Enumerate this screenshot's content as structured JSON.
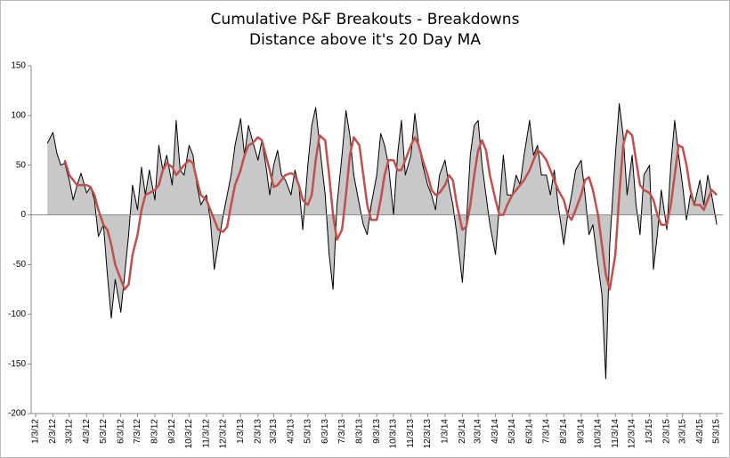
{
  "chart_data": {
    "type": "line",
    "title": "Cumulative P&F Breakouts - Breakdowns",
    "subtitle": "Distance above it's 20 Day MA",
    "x": [
      "1/24/12",
      "2/3/12",
      "2/10/12",
      "2/17/12",
      "2/24/12",
      "3/3/12",
      "3/10/12",
      "3/17/12",
      "3/24/12",
      "4/3/12",
      "4/10/12",
      "4/17/12",
      "4/24/12",
      "5/3/12",
      "5/10/12",
      "5/17/12",
      "5/24/12",
      "6/3/12",
      "6/10/12",
      "6/17/12",
      "6/24/12",
      "7/3/12",
      "7/10/12",
      "7/17/12",
      "7/24/12",
      "8/3/12",
      "8/10/12",
      "8/17/12",
      "8/24/12",
      "9/3/12",
      "9/10/12",
      "9/17/12",
      "9/24/12",
      "10/3/12",
      "10/10/12",
      "10/17/12",
      "10/24/12",
      "11/3/12",
      "11/10/12",
      "11/17/12",
      "11/24/12",
      "12/3/12",
      "12/10/12",
      "12/17/12",
      "12/24/12",
      "1/3/13",
      "1/10/13",
      "1/17/13",
      "1/24/13",
      "2/3/13",
      "2/10/13",
      "2/17/13",
      "2/24/13",
      "3/3/13",
      "3/10/13",
      "3/17/13",
      "3/24/13",
      "4/3/13",
      "4/10/13",
      "4/17/13",
      "4/24/13",
      "5/3/13",
      "5/10/13",
      "5/17/13",
      "5/24/13",
      "6/3/13",
      "6/10/13",
      "6/17/13",
      "6/24/13",
      "7/3/13",
      "7/10/13",
      "7/17/13",
      "7/24/13",
      "8/3/13",
      "8/10/13",
      "8/17/13",
      "8/24/13",
      "9/3/13",
      "9/10/13",
      "9/17/13",
      "9/24/13",
      "10/3/13",
      "10/10/13",
      "10/17/13",
      "10/24/13",
      "11/3/13",
      "11/10/13",
      "11/17/13",
      "11/24/13",
      "12/3/13",
      "12/10/13",
      "12/17/13",
      "12/24/13",
      "1/3/14",
      "1/10/14",
      "1/17/14",
      "1/24/14",
      "2/3/14",
      "2/10/14",
      "2/17/14",
      "2/24/14",
      "3/3/14",
      "3/10/14",
      "3/17/14",
      "3/24/14",
      "4/3/14",
      "4/10/14",
      "4/17/14",
      "4/24/14",
      "5/3/14",
      "5/10/14",
      "5/17/14",
      "5/24/14",
      "6/3/14",
      "6/10/14",
      "6/17/14",
      "6/24/14",
      "7/3/14",
      "7/10/14",
      "7/17/14",
      "7/24/14",
      "8/3/14",
      "8/10/14",
      "8/17/14",
      "8/24/14",
      "9/3/14",
      "9/10/14",
      "9/17/14",
      "9/24/14",
      "10/3/14",
      "10/10/14",
      "10/17/14",
      "10/24/14",
      "11/3/14",
      "11/10/14",
      "11/17/14",
      "11/24/14",
      "12/3/14",
      "12/10/14",
      "12/17/14",
      "12/24/14",
      "1/3/15",
      "1/10/15",
      "1/17/15",
      "1/24/15",
      "2/3/15",
      "2/10/15",
      "2/17/15",
      "2/24/15",
      "3/3/15",
      "3/10/15",
      "3/17/15",
      "3/24/15",
      "4/3/15",
      "4/10/15",
      "4/17/15",
      "4/24/15",
      "5/3/15"
    ],
    "series": [
      {
        "color": "#000000",
        "fill": "#c8c8c8",
        "values": [
          72,
          83,
          62,
          50,
          52,
          35,
          15,
          30,
          42,
          22,
          28,
          15,
          -22,
          -10,
          -60,
          -104,
          -65,
          -98,
          -60,
          -20,
          30,
          5,
          48,
          20,
          45,
          15,
          70,
          45,
          60,
          30,
          95,
          45,
          40,
          70,
          60,
          30,
          10,
          20,
          -5,
          -55,
          -30,
          0,
          20,
          40,
          70,
          97,
          60,
          90,
          75,
          55,
          75,
          50,
          20,
          50,
          65,
          40,
          35,
          20,
          45,
          30,
          -15,
          50,
          90,
          108,
          70,
          20,
          -40,
          -75,
          10,
          60,
          105,
          80,
          40,
          10,
          -10,
          -20,
          10,
          40,
          82,
          70,
          50,
          0,
          60,
          95,
          40,
          60,
          102,
          70,
          50,
          30,
          20,
          5,
          40,
          55,
          30,
          10,
          -20,
          -68,
          -10,
          60,
          90,
          95,
          50,
          20,
          -10,
          -40,
          10,
          60,
          20,
          20,
          40,
          30,
          60,
          95,
          60,
          70,
          40,
          40,
          20,
          45,
          10,
          -30,
          0,
          20,
          45,
          55,
          20,
          -20,
          -10,
          -50,
          -80,
          -165,
          -30,
          60,
          112,
          80,
          20,
          60,
          10,
          -20,
          40,
          50,
          -55,
          -20,
          25,
          -15,
          50,
          95,
          60,
          30,
          -5,
          20,
          10,
          35,
          10,
          40,
          20,
          -10
        ]
      },
      {
        "color": "#c0504d",
        "values": [
          null,
          null,
          null,
          null,
          55,
          40,
          35,
          30,
          30,
          30,
          28,
          20,
          5,
          -10,
          -15,
          -30,
          -50,
          -65,
          -75,
          -70,
          -40,
          -20,
          5,
          20,
          22,
          25,
          30,
          45,
          52,
          48,
          40,
          45,
          50,
          55,
          52,
          35,
          20,
          15,
          5,
          -5,
          -15,
          -17,
          -12,
          10,
          30,
          45,
          60,
          70,
          72,
          78,
          75,
          60,
          45,
          28,
          30,
          35,
          40,
          42,
          40,
          30,
          15,
          10,
          20,
          55,
          80,
          75,
          40,
          0,
          -25,
          -15,
          20,
          60,
          78,
          70,
          40,
          10,
          -5,
          -5,
          15,
          40,
          55,
          55,
          45,
          45,
          55,
          70,
          78,
          70,
          55,
          40,
          25,
          20,
          22,
          30,
          40,
          35,
          10,
          -15,
          -12,
          10,
          40,
          65,
          75,
          65,
          40,
          15,
          0,
          0,
          10,
          20,
          25,
          30,
          35,
          45,
          55,
          65,
          62,
          55,
          45,
          35,
          25,
          15,
          0,
          -5,
          5,
          20,
          35,
          38,
          25,
          0,
          -30,
          -60,
          -75,
          -40,
          20,
          70,
          85,
          80,
          55,
          30,
          25,
          22,
          15,
          0,
          -10,
          -10,
          10,
          40,
          70,
          68,
          50,
          25,
          10,
          10,
          5,
          15,
          25,
          20
        ]
      }
    ],
    "xlim": [
      "12/26/11",
      "5/14/15"
    ],
    "xticks": [
      "1/3/12",
      "2/3/12",
      "3/3/12",
      "4/3/12",
      "5/3/12",
      "6/3/12",
      "7/3/12",
      "8/3/12",
      "9/3/12",
      "10/3/12",
      "11/3/12",
      "12/3/12",
      "1/3/13",
      "2/3/13",
      "3/3/13",
      "4/3/13",
      "5/3/13",
      "6/3/13",
      "7/3/13",
      "8/3/13",
      "9/3/13",
      "10/3/13",
      "11/3/13",
      "12/3/13",
      "1/3/14",
      "2/3/14",
      "3/3/14",
      "4/3/14",
      "5/3/14",
      "6/3/14",
      "7/3/14",
      "8/3/14",
      "9/3/14",
      "10/3/14",
      "11/3/14",
      "12/3/14",
      "1/3/15",
      "2/3/15",
      "3/3/15",
      "4/3/15",
      "5/3/15"
    ],
    "ylim": [
      -200,
      150
    ],
    "yticks": [
      150,
      100,
      50,
      0,
      -50,
      -100,
      -150,
      -200
    ],
    "grid": false
  }
}
